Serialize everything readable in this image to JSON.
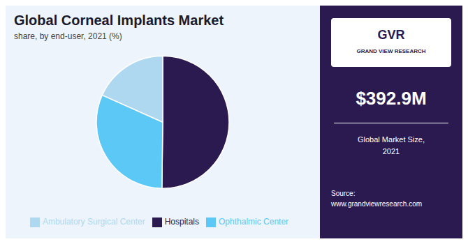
{
  "chart_data": {
    "type": "pie",
    "title": "Global Corneal Implants Market",
    "subtitle": "share, by end-user, 2021 (%)",
    "categories": [
      "Hospitals",
      "Ophthalmic Center",
      "Ambulatory Surgical Center"
    ],
    "values": [
      50.2,
      31.5,
      18.3
    ],
    "colors": [
      "#2b1a4f",
      "#5bc8f5",
      "#add8f0"
    ],
    "legend": "bottom",
    "annotations": [
      "GVR",
      "GRAND VIEW RESEARCH",
      "$392.9M",
      "Global Market Size,\n2021",
      "Source:\nwww.grandviewresearch.com"
    ]
  }
}
